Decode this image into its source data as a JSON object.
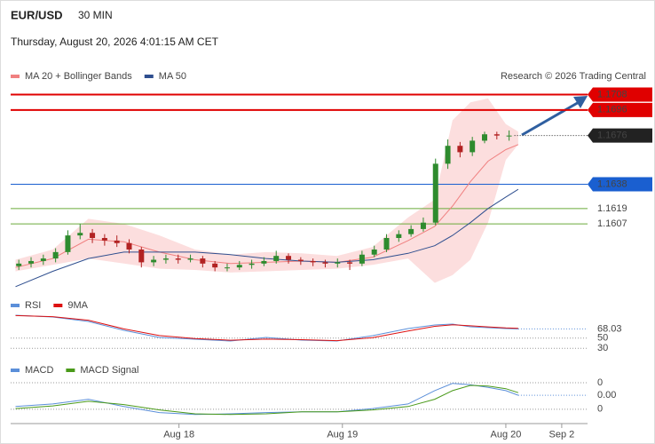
{
  "header": {
    "symbol": "EUR/USD",
    "interval": "30 MIN",
    "timestamp": "Thursday, August 20, 2026 4:01:15 AM CET"
  },
  "chart_data": [
    {
      "type": "candlestick",
      "credit": "Research © 2026 Trading Central",
      "xlim": [
        -0.03,
        3.5
      ],
      "xticks": [
        {
          "value": 1,
          "label": "Aug 18"
        },
        {
          "value": 2,
          "label": "Aug 19"
        },
        {
          "value": 3,
          "label": "Aug 20"
        },
        {
          "value": 3.342,
          "label": "Sep 2"
        }
      ],
      "ylim": [
        1.1553,
        1.1716
      ],
      "up_color": "#2e8b2e",
      "down_color": "#b22222",
      "x": [
        0.02,
        0.095,
        0.17,
        0.245,
        0.32,
        0.395,
        0.47,
        0.545,
        0.62,
        0.695,
        0.77,
        0.845,
        0.92,
        0.995,
        1.07,
        1.145,
        1.22,
        1.295,
        1.37,
        1.445,
        1.52,
        1.595,
        1.67,
        1.745,
        1.82,
        1.895,
        1.97,
        2.045,
        2.12,
        2.195,
        2.27,
        2.345,
        2.42,
        2.495,
        2.57,
        2.645,
        2.72,
        2.795,
        2.87,
        2.945,
        3.02
      ],
      "open": [
        1.1574,
        1.1576,
        1.1578,
        1.158,
        1.1585,
        1.1598,
        1.16,
        1.1596,
        1.1594,
        1.1592,
        1.1587,
        1.1577,
        1.1579,
        1.158,
        1.1579,
        1.158,
        1.1576,
        1.1573,
        1.1573,
        1.1575,
        1.1576,
        1.1578,
        1.1582,
        1.1579,
        1.1578,
        1.1577,
        1.1576,
        1.1577,
        1.1576,
        1.1583,
        1.1587,
        1.1596,
        1.1599,
        1.1603,
        1.1608,
        1.1654,
        1.1668,
        1.1663,
        1.1672,
        1.1677,
        1.1676
      ],
      "high": [
        1.1579,
        1.1581,
        1.1583,
        1.1588,
        1.1602,
        1.1607,
        1.1603,
        1.1599,
        1.1598,
        1.1595,
        1.1589,
        1.1582,
        1.1583,
        1.1583,
        1.1583,
        1.1582,
        1.1578,
        1.1576,
        1.1578,
        1.1579,
        1.1581,
        1.1586,
        1.1584,
        1.1581,
        1.158,
        1.1579,
        1.158,
        1.1579,
        1.1586,
        1.159,
        1.1599,
        1.1602,
        1.1606,
        1.1612,
        1.1658,
        1.1673,
        1.1671,
        1.1675,
        1.1679,
        1.1679,
        1.168
      ],
      "low": [
        1.1571,
        1.1573,
        1.1575,
        1.1577,
        1.1583,
        1.1595,
        1.1592,
        1.159,
        1.1589,
        1.1584,
        1.1573,
        1.1574,
        1.1576,
        1.1576,
        1.1577,
        1.1573,
        1.157,
        1.157,
        1.1571,
        1.1572,
        1.1574,
        1.1576,
        1.1576,
        1.1575,
        1.1574,
        1.1573,
        1.1573,
        1.1571,
        1.1574,
        1.1581,
        1.1585,
        1.1593,
        1.1597,
        1.1601,
        1.1606,
        1.165,
        1.1659,
        1.166,
        1.167,
        1.1673,
        1.1672
      ],
      "close": [
        1.1576,
        1.1578,
        1.158,
        1.1585,
        1.1598,
        1.16,
        1.1596,
        1.1594,
        1.1592,
        1.1587,
        1.1577,
        1.1579,
        1.158,
        1.1579,
        1.158,
        1.1576,
        1.1573,
        1.1573,
        1.1575,
        1.1576,
        1.1578,
        1.1582,
        1.1579,
        1.1578,
        1.1577,
        1.1576,
        1.1577,
        1.1576,
        1.1583,
        1.1587,
        1.1596,
        1.1599,
        1.1603,
        1.1608,
        1.1654,
        1.1668,
        1.1663,
        1.1672,
        1.1677,
        1.1676,
        1.1676
      ],
      "series": [
        {
          "name": "MA 20 + Bollinger Bands",
          "color": "#f08080",
          "band_color": "#fcdede",
          "x": [
            0,
            0.228,
            0.446,
            0.663,
            0.88,
            1.098,
            1.315,
            1.533,
            1.75,
            1.967,
            2.185,
            2.402,
            2.565,
            2.674,
            2.783,
            2.891,
            3.0,
            3.076
          ],
          "values": [
            1.1573,
            1.158,
            1.1595,
            1.1593,
            1.1585,
            1.1579,
            1.1576,
            1.1577,
            1.1578,
            1.1577,
            1.1581,
            1.1594,
            1.1605,
            1.1621,
            1.164,
            1.1656,
            1.1665,
            1.1669
          ],
          "upper": [
            1.1579,
            1.1587,
            1.1611,
            1.1607,
            1.1598,
            1.1587,
            1.1583,
            1.1585,
            1.1584,
            1.1582,
            1.1589,
            1.1612,
            1.1626,
            1.1688,
            1.1702,
            1.1705,
            1.1685,
            1.1679
          ],
          "lower": [
            1.157,
            1.1575,
            1.158,
            1.1576,
            1.1572,
            1.1571,
            1.1569,
            1.157,
            1.1571,
            1.1572,
            1.1575,
            1.158,
            1.1561,
            1.1567,
            1.1579,
            1.1608,
            1.1657,
            1.1669
          ]
        },
        {
          "name": "MA 50",
          "color": "#2f4f8f",
          "x": [
            0,
            0.228,
            0.446,
            0.663,
            0.88,
            1.098,
            1.315,
            1.533,
            1.75,
            1.967,
            2.185,
            2.402,
            2.565,
            2.674,
            2.783,
            2.891,
            3.0,
            3.076
          ],
          "values": [
            1.1558,
            1.157,
            1.158,
            1.1585,
            1.1585,
            1.1585,
            1.1583,
            1.158,
            1.1578,
            1.1577,
            1.1579,
            1.1584,
            1.159,
            1.1598,
            1.1608,
            1.1619,
            1.1628,
            1.1634
          ]
        }
      ],
      "levels": [
        {
          "value": 1.1708,
          "color": "#e00000",
          "label_style": "box"
        },
        {
          "value": 1.1696,
          "color": "#e00000",
          "label_style": "box"
        },
        {
          "value": 1.1676,
          "color": "#222222",
          "label_style": "box",
          "dashed": true
        },
        {
          "value": 1.1638,
          "color": "#1a5fd0",
          "label_style": "box"
        },
        {
          "value": 1.1619,
          "color": "#6aaa3a",
          "label_style": "text"
        },
        {
          "value": 1.1607,
          "color": "#6aaa3a",
          "label_style": "text"
        }
      ]
    },
    {
      "type": "line",
      "ylim": [
        20,
        100
      ],
      "yticks": [
        30,
        50
      ],
      "last_value": 68.03,
      "last_color": "#5b8fd9",
      "series": [
        {
          "name": "RSI",
          "color": "#5b8fd9",
          "x": [
            0,
            0.228,
            0.446,
            0.663,
            0.88,
            1.098,
            1.315,
            1.533,
            1.75,
            1.967,
            2.185,
            2.402,
            2.565,
            2.674,
            2.783,
            2.891,
            3.0,
            3.076
          ],
          "values": [
            94.8,
            91.3,
            82.6,
            65.2,
            51.3,
            47.8,
            44.3,
            51.3,
            46.1,
            44.3,
            54.8,
            68.7,
            75.7,
            77.4,
            72.2,
            70.4,
            68.7,
            68.03
          ]
        },
        {
          "name": "9MA",
          "color": "#dd1111",
          "x": [
            0,
            0.228,
            0.446,
            0.663,
            0.88,
            1.098,
            1.315,
            1.533,
            1.75,
            1.967,
            2.185,
            2.402,
            2.565,
            2.674,
            2.783,
            2.891,
            3.0,
            3.076
          ],
          "values": [
            94,
            92,
            85,
            68,
            55,
            49,
            46,
            48,
            47,
            45,
            51,
            64,
            73,
            76,
            74,
            72,
            70,
            69
          ]
        }
      ]
    },
    {
      "type": "line",
      "ylim": [
        -0.0039,
        0.0028
      ],
      "yticks": [
        {
          "value": 0.002,
          "label": "0"
        },
        {
          "value": -0.002,
          "label": "0"
        }
      ],
      "last_value": {
        "value": 0.0001,
        "label": "0.00"
      },
      "last_color": "#5b8fd9",
      "series": [
        {
          "name": "MACD",
          "color": "#5b8fd9",
          "x": [
            0,
            0.228,
            0.446,
            0.663,
            0.88,
            1.098,
            1.315,
            1.533,
            1.75,
            1.967,
            2.185,
            2.402,
            2.565,
            2.674,
            2.783,
            2.891,
            3.0,
            3.076
          ],
          "values": [
            -0.0016,
            -0.0012,
            -0.0005,
            -0.0016,
            -0.0025,
            -0.0028,
            -0.0027,
            -0.0025,
            -0.0024,
            -0.0024,
            -0.0019,
            -0.0012,
            0.0008,
            0.0019,
            0.0017,
            0.0013,
            0.0008,
            0.0001
          ]
        },
        {
          "name": "MACD Signal",
          "color": "#4a9a1a",
          "x": [
            0,
            0.228,
            0.446,
            0.663,
            0.88,
            1.098,
            1.315,
            1.533,
            1.75,
            1.967,
            2.185,
            2.402,
            2.565,
            2.674,
            2.783,
            2.891,
            3.0,
            3.076
          ],
          "values": [
            -0.0019,
            -0.0015,
            -0.0008,
            -0.0013,
            -0.0021,
            -0.0027,
            -0.0028,
            -0.0027,
            -0.0024,
            -0.0024,
            -0.0021,
            -0.0016,
            -0.0005,
            0.0008,
            0.0016,
            0.0015,
            0.0011,
            0.0005
          ]
        }
      ]
    }
  ]
}
